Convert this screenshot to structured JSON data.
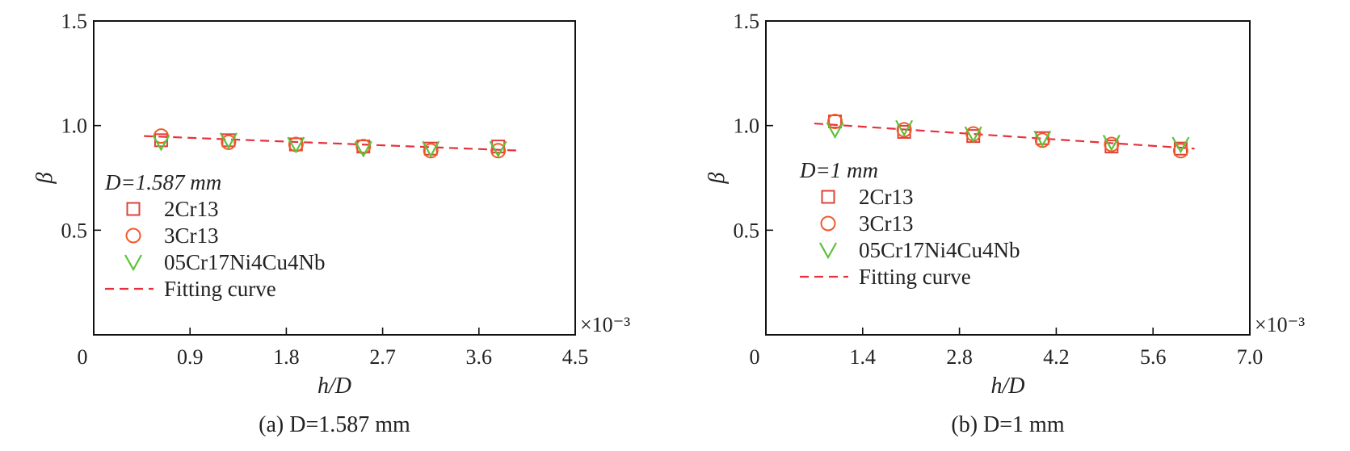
{
  "chart_data": [
    {
      "type": "scatter",
      "caption": "(a) D=1.587 mm",
      "xlabel": "h/D",
      "ylabel": "β",
      "x_multiplier": "×10⁻³",
      "xlim": [
        0,
        4.5
      ],
      "ylim": [
        0,
        1.5
      ],
      "xticks": [
        "0",
        "0.9",
        "1.8",
        "2.7",
        "3.6",
        "4.5"
      ],
      "yticks": [
        "0.5",
        "1.0",
        "1.5"
      ],
      "legend_title": "D=1.587 mm",
      "legend_placement": "bottom-left",
      "series": [
        {
          "name": "2Cr13",
          "marker": "square",
          "color": "#e0403a",
          "x": [
            0.63,
            1.26,
            1.89,
            2.52,
            3.15,
            3.78
          ],
          "y": [
            0.93,
            0.93,
            0.91,
            0.9,
            0.89,
            0.9
          ]
        },
        {
          "name": "3Cr13",
          "marker": "circle",
          "color": "#f05a28",
          "x": [
            0.63,
            1.26,
            1.89,
            2.52,
            3.15,
            3.78
          ],
          "y": [
            0.95,
            0.92,
            0.91,
            0.9,
            0.88,
            0.88
          ]
        },
        {
          "name": "05Cr17Ni4Cu4Nb",
          "marker": "triangle-down",
          "color": "#5cc23a",
          "x": [
            0.63,
            1.26,
            1.89,
            2.52,
            3.15,
            3.78
          ],
          "y": [
            0.92,
            0.93,
            0.91,
            0.89,
            0.89,
            0.89
          ]
        }
      ],
      "fit": {
        "name": "Fitting curve",
        "color": "#e8303a",
        "x": [
          0.47,
          4.0
        ],
        "y": [
          0.95,
          0.88
        ]
      }
    },
    {
      "type": "scatter",
      "caption": "(b) D=1 mm",
      "xlabel": "h/D",
      "ylabel": "β",
      "x_multiplier": "×10⁻³",
      "xlim": [
        0,
        7.0
      ],
      "ylim": [
        0,
        1.5
      ],
      "xticks": [
        "0",
        "1.4",
        "2.8",
        "4.2",
        "5.6",
        "7.0"
      ],
      "yticks": [
        "0.5",
        "1.0",
        "1.5"
      ],
      "legend_title": "D=1 mm",
      "legend_placement": "bottom-left",
      "series": [
        {
          "name": "2Cr13",
          "marker": "square",
          "color": "#e0403a",
          "x": [
            1.0,
            2.0,
            3.0,
            4.0,
            5.0,
            6.0
          ],
          "y": [
            1.02,
            0.97,
            0.95,
            0.94,
            0.9,
            0.89
          ]
        },
        {
          "name": "3Cr13",
          "marker": "circle",
          "color": "#f05a28",
          "x": [
            1.0,
            2.0,
            3.0,
            4.0,
            5.0,
            6.0
          ],
          "y": [
            1.02,
            0.98,
            0.96,
            0.93,
            0.91,
            0.88
          ]
        },
        {
          "name": "05Cr17Ni4Cu4Nb",
          "marker": "triangle-down",
          "color": "#5cc23a",
          "x": [
            1.0,
            2.0,
            3.0,
            4.0,
            5.0,
            6.0
          ],
          "y": [
            0.98,
            0.99,
            0.96,
            0.94,
            0.92,
            0.91
          ]
        }
      ],
      "fit": {
        "name": "Fitting curve",
        "color": "#e8303a",
        "x": [
          0.7,
          6.2
        ],
        "y": [
          1.01,
          0.89
        ]
      }
    }
  ]
}
